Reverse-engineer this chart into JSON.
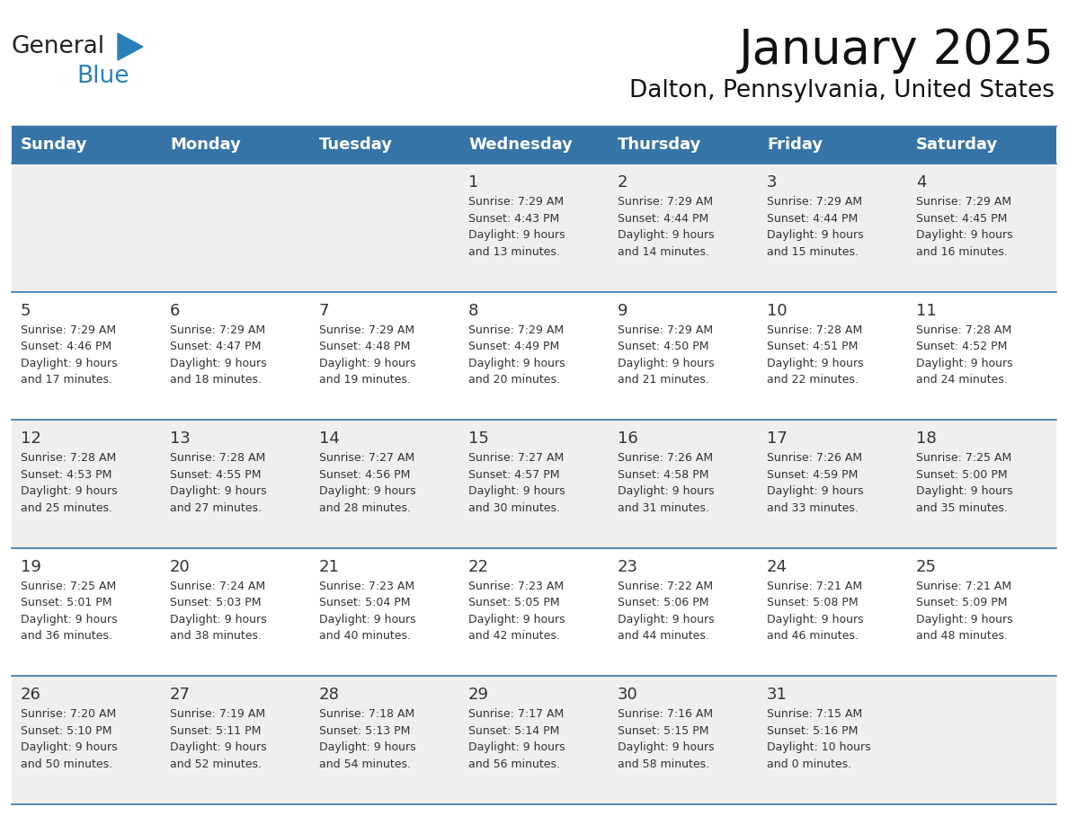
{
  "title": "January 2025",
  "subtitle": "Dalton, Pennsylvania, United States",
  "days_of_week": [
    "Sunday",
    "Monday",
    "Tuesday",
    "Wednesday",
    "Thursday",
    "Friday",
    "Saturday"
  ],
  "header_bg": "#3674a8",
  "header_text": "#FFFFFF",
  "cell_bg_light": "#EFEFEF",
  "cell_bg_white": "#FFFFFF",
  "cell_border": "#3674a8",
  "text_color": "#333333",
  "day_num_color": "#333333",
  "calendar_data": [
    [
      {
        "day": "",
        "info": ""
      },
      {
        "day": "",
        "info": ""
      },
      {
        "day": "",
        "info": ""
      },
      {
        "day": "1",
        "info": "Sunrise: 7:29 AM\nSunset: 4:43 PM\nDaylight: 9 hours\nand 13 minutes."
      },
      {
        "day": "2",
        "info": "Sunrise: 7:29 AM\nSunset: 4:44 PM\nDaylight: 9 hours\nand 14 minutes."
      },
      {
        "day": "3",
        "info": "Sunrise: 7:29 AM\nSunset: 4:44 PM\nDaylight: 9 hours\nand 15 minutes."
      },
      {
        "day": "4",
        "info": "Sunrise: 7:29 AM\nSunset: 4:45 PM\nDaylight: 9 hours\nand 16 minutes."
      }
    ],
    [
      {
        "day": "5",
        "info": "Sunrise: 7:29 AM\nSunset: 4:46 PM\nDaylight: 9 hours\nand 17 minutes."
      },
      {
        "day": "6",
        "info": "Sunrise: 7:29 AM\nSunset: 4:47 PM\nDaylight: 9 hours\nand 18 minutes."
      },
      {
        "day": "7",
        "info": "Sunrise: 7:29 AM\nSunset: 4:48 PM\nDaylight: 9 hours\nand 19 minutes."
      },
      {
        "day": "8",
        "info": "Sunrise: 7:29 AM\nSunset: 4:49 PM\nDaylight: 9 hours\nand 20 minutes."
      },
      {
        "day": "9",
        "info": "Sunrise: 7:29 AM\nSunset: 4:50 PM\nDaylight: 9 hours\nand 21 minutes."
      },
      {
        "day": "10",
        "info": "Sunrise: 7:28 AM\nSunset: 4:51 PM\nDaylight: 9 hours\nand 22 minutes."
      },
      {
        "day": "11",
        "info": "Sunrise: 7:28 AM\nSunset: 4:52 PM\nDaylight: 9 hours\nand 24 minutes."
      }
    ],
    [
      {
        "day": "12",
        "info": "Sunrise: 7:28 AM\nSunset: 4:53 PM\nDaylight: 9 hours\nand 25 minutes."
      },
      {
        "day": "13",
        "info": "Sunrise: 7:28 AM\nSunset: 4:55 PM\nDaylight: 9 hours\nand 27 minutes."
      },
      {
        "day": "14",
        "info": "Sunrise: 7:27 AM\nSunset: 4:56 PM\nDaylight: 9 hours\nand 28 minutes."
      },
      {
        "day": "15",
        "info": "Sunrise: 7:27 AM\nSunset: 4:57 PM\nDaylight: 9 hours\nand 30 minutes."
      },
      {
        "day": "16",
        "info": "Sunrise: 7:26 AM\nSunset: 4:58 PM\nDaylight: 9 hours\nand 31 minutes."
      },
      {
        "day": "17",
        "info": "Sunrise: 7:26 AM\nSunset: 4:59 PM\nDaylight: 9 hours\nand 33 minutes."
      },
      {
        "day": "18",
        "info": "Sunrise: 7:25 AM\nSunset: 5:00 PM\nDaylight: 9 hours\nand 35 minutes."
      }
    ],
    [
      {
        "day": "19",
        "info": "Sunrise: 7:25 AM\nSunset: 5:01 PM\nDaylight: 9 hours\nand 36 minutes."
      },
      {
        "day": "20",
        "info": "Sunrise: 7:24 AM\nSunset: 5:03 PM\nDaylight: 9 hours\nand 38 minutes."
      },
      {
        "day": "21",
        "info": "Sunrise: 7:23 AM\nSunset: 5:04 PM\nDaylight: 9 hours\nand 40 minutes."
      },
      {
        "day": "22",
        "info": "Sunrise: 7:23 AM\nSunset: 5:05 PM\nDaylight: 9 hours\nand 42 minutes."
      },
      {
        "day": "23",
        "info": "Sunrise: 7:22 AM\nSunset: 5:06 PM\nDaylight: 9 hours\nand 44 minutes."
      },
      {
        "day": "24",
        "info": "Sunrise: 7:21 AM\nSunset: 5:08 PM\nDaylight: 9 hours\nand 46 minutes."
      },
      {
        "day": "25",
        "info": "Sunrise: 7:21 AM\nSunset: 5:09 PM\nDaylight: 9 hours\nand 48 minutes."
      }
    ],
    [
      {
        "day": "26",
        "info": "Sunrise: 7:20 AM\nSunset: 5:10 PM\nDaylight: 9 hours\nand 50 minutes."
      },
      {
        "day": "27",
        "info": "Sunrise: 7:19 AM\nSunset: 5:11 PM\nDaylight: 9 hours\nand 52 minutes."
      },
      {
        "day": "28",
        "info": "Sunrise: 7:18 AM\nSunset: 5:13 PM\nDaylight: 9 hours\nand 54 minutes."
      },
      {
        "day": "29",
        "info": "Sunrise: 7:17 AM\nSunset: 5:14 PM\nDaylight: 9 hours\nand 56 minutes."
      },
      {
        "day": "30",
        "info": "Sunrise: 7:16 AM\nSunset: 5:15 PM\nDaylight: 9 hours\nand 58 minutes."
      },
      {
        "day": "31",
        "info": "Sunrise: 7:15 AM\nSunset: 5:16 PM\nDaylight: 10 hours\nand 0 minutes."
      },
      {
        "day": "",
        "info": ""
      }
    ]
  ],
  "logo_text_general": "General",
  "logo_text_blue": "Blue",
  "logo_color_general": "#222222",
  "logo_color_blue": "#2980B9",
  "logo_triangle_color": "#2980B9",
  "fig_width": 11.88,
  "fig_height": 9.18,
  "dpi": 100
}
